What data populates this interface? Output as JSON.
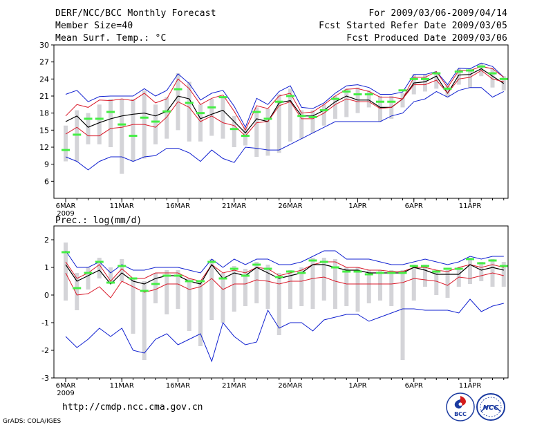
{
  "header": {
    "title": "DERF/NCC/BCC Monthly Forecast",
    "member_size": "Member Size=40",
    "variable": "Mean Surf. Temp.: °C",
    "period": "For 2009/03/06-2009/04/14",
    "started_refer": "Fcst Started Refer Date 2009/03/05",
    "produced": "Fcst Produced Date 2009/03/06"
  },
  "footer": {
    "url": "http://cmdp.ncc.cma.gov.cn",
    "grads": "GrADS: COLA/IGES",
    "logo_bcc_text": "BCC",
    "logo_ncc_text": "NCC"
  },
  "colors": {
    "ensemble_mean": "#000000",
    "percentile_band": "#d91a2a",
    "extremes": "#1020d0",
    "member_bar": "#d4d4d8",
    "observed_mark": "#44ee44"
  },
  "chart_data": [
    {
      "type": "line",
      "title": "Mean Surf. Temp.: °C",
      "x_tick_labels": [
        "6MAR",
        "11MAR",
        "16MAR",
        "21MAR",
        "26MAR",
        "1APR",
        "6APR",
        "11APR"
      ],
      "x_year_label": "2009",
      "x_tick_index": [
        0,
        5,
        10,
        15,
        20,
        26,
        31,
        36
      ],
      "n_days": 40,
      "ylim": [
        3,
        30
      ],
      "yticks": [
        6,
        9,
        12,
        15,
        18,
        21,
        24,
        27,
        30
      ],
      "series": [
        {
          "name": "max",
          "values": [
            21.3,
            22.0,
            20.0,
            20.9,
            21.0,
            21.0,
            21.0,
            22.3,
            21.0,
            22.0,
            24.9,
            23.2,
            20.3,
            21.5,
            22.0,
            19.2,
            15.5,
            20.6,
            19.5,
            21.8,
            22.8,
            19.0,
            18.8,
            19.8,
            21.5,
            22.8,
            23.0,
            22.5,
            21.3,
            21.3,
            21.7,
            24.8,
            24.8,
            25.3,
            23.0,
            25.9,
            25.8,
            26.8,
            26.2,
            24.3
          ]
        },
        {
          "name": "upper",
          "values": [
            17.5,
            19.5,
            19.0,
            20.3,
            20.2,
            20.5,
            20.2,
            21.5,
            19.8,
            20.5,
            24.0,
            22.3,
            19.5,
            20.6,
            21.2,
            18.3,
            15.0,
            19.3,
            18.8,
            21.0,
            21.5,
            18.0,
            18.2,
            19.5,
            21.0,
            22.2,
            22.3,
            21.8,
            20.8,
            20.8,
            20.5,
            24.3,
            24.3,
            25.3,
            22.5,
            25.5,
            25.5,
            26.2,
            25.8,
            24.3
          ]
        },
        {
          "name": "mean",
          "values": [
            16.5,
            17.5,
            15.5,
            16.3,
            17.0,
            17.5,
            17.8,
            18.0,
            17.5,
            18.3,
            21.0,
            20.5,
            17.0,
            17.8,
            18.5,
            16.5,
            14.5,
            17.0,
            16.5,
            19.8,
            20.2,
            17.5,
            17.5,
            18.5,
            20.0,
            21.0,
            20.3,
            20.3,
            19.0,
            19.0,
            20.5,
            23.3,
            23.5,
            24.5,
            21.5,
            24.7,
            24.8,
            25.8,
            24.5,
            23.2
          ]
        },
        {
          "name": "lower",
          "values": [
            14.3,
            15.5,
            14.0,
            14.0,
            15.3,
            15.5,
            16.0,
            16.0,
            15.5,
            17.3,
            20.0,
            19.0,
            16.5,
            17.5,
            16.3,
            15.8,
            14.0,
            16.3,
            16.5,
            19.3,
            20.0,
            17.0,
            17.0,
            18.0,
            19.5,
            20.5,
            20.0,
            20.0,
            18.8,
            19.0,
            20.5,
            23.0,
            23.0,
            23.8,
            21.5,
            24.0,
            24.3,
            25.5,
            24.0,
            23.5
          ]
        },
        {
          "name": "min",
          "values": [
            10.3,
            9.5,
            8.0,
            9.5,
            10.3,
            10.3,
            9.5,
            10.3,
            10.5,
            11.8,
            11.8,
            11.0,
            9.5,
            11.5,
            10.0,
            9.3,
            12.0,
            11.8,
            11.5,
            11.5,
            12.5,
            13.5,
            14.5,
            15.5,
            16.5,
            16.5,
            16.5,
            16.5,
            16.5,
            17.5,
            18.0,
            20.0,
            20.5,
            21.8,
            20.8,
            22.0,
            22.5,
            22.5,
            20.8,
            21.8
          ]
        }
      ],
      "member_range": {
        "low": [
          9.5,
          9.5,
          12.5,
          12.5,
          12.0,
          7.3,
          9.5,
          10.0,
          12.5,
          13.5,
          15.0,
          13.0,
          13.0,
          14.0,
          13.5,
          12.0,
          12.3,
          10.3,
          10.5,
          11.0,
          13.0,
          13.5,
          14.5,
          15.8,
          17.0,
          17.3,
          18.0,
          19.0,
          16.5,
          17.0,
          19.0,
          21.3,
          21.8,
          22.3,
          20.8,
          23.0,
          22.5,
          24.5,
          22.5,
          22.0
        ],
        "high": [
          15.8,
          18.5,
          18.0,
          19.5,
          20.5,
          20.5,
          20.5,
          22.0,
          19.5,
          20.8,
          25.0,
          23.5,
          19.5,
          20.5,
          20.8,
          17.5,
          15.5,
          19.0,
          18.8,
          21.3,
          22.3,
          18.5,
          18.5,
          19.5,
          21.0,
          22.3,
          22.5,
          22.0,
          21.0,
          21.0,
          21.5,
          24.8,
          24.8,
          25.0,
          23.0,
          25.8,
          25.8,
          26.8,
          26.0,
          24.5
        ]
      },
      "observed": [
        11.5,
        14.2,
        17.0,
        17.0,
        18.2,
        16.0,
        14.0,
        17.2,
        16.5,
        18.3,
        22.2,
        19.8,
        18.0,
        19.0,
        20.8,
        15.2,
        14.0,
        18.2,
        17.0,
        20.0,
        21.0,
        17.5,
        17.3,
        18.5,
        20.5,
        21.8,
        21.3,
        21.3,
        20.0,
        20.0,
        22.0,
        24.0,
        24.0,
        25.0,
        22.3,
        25.3,
        25.5,
        26.2,
        25.0,
        24.0
      ]
    },
    {
      "type": "line",
      "title": "Prec.: log(mm/d)",
      "x_tick_labels": [
        "6MAR",
        "11MAR",
        "16MAR",
        "21MAR",
        "26MAR",
        "1APR",
        "6APR",
        "11APR"
      ],
      "x_year_label": "2009",
      "x_tick_index": [
        0,
        5,
        10,
        15,
        20,
        26,
        31,
        36
      ],
      "n_days": 40,
      "ylim": [
        -3,
        2.5
      ],
      "yticks": [
        -3,
        -2,
        -1,
        0,
        1,
        2
      ],
      "series": [
        {
          "name": "max",
          "values": [
            1.6,
            1.0,
            1.0,
            1.2,
            0.8,
            1.1,
            0.9,
            0.9,
            1.0,
            1.0,
            1.0,
            0.9,
            0.8,
            1.3,
            1.0,
            1.3,
            1.1,
            1.3,
            1.3,
            1.1,
            1.1,
            1.2,
            1.4,
            1.6,
            1.6,
            1.3,
            1.3,
            1.3,
            1.2,
            1.1,
            1.1,
            1.2,
            1.3,
            1.2,
            1.1,
            1.2,
            1.4,
            1.3,
            1.4,
            1.4
          ]
        },
        {
          "name": "upper",
          "values": [
            1.2,
            0.6,
            0.8,
            1.1,
            0.5,
            0.95,
            0.6,
            0.6,
            0.8,
            0.8,
            0.8,
            0.6,
            0.5,
            1.1,
            0.8,
            0.9,
            0.8,
            1.0,
            0.95,
            0.7,
            0.8,
            0.9,
            1.1,
            1.2,
            1.2,
            1.0,
            1.0,
            0.9,
            0.9,
            0.85,
            0.85,
            1.0,
            1.0,
            0.9,
            0.85,
            1.0,
            1.1,
            1.0,
            1.1,
            1.0
          ]
        },
        {
          "name": "mean",
          "values": [
            1.1,
            0.5,
            0.7,
            0.9,
            0.4,
            0.8,
            0.5,
            0.4,
            0.6,
            0.7,
            0.7,
            0.5,
            0.4,
            1.1,
            0.6,
            0.8,
            0.7,
            1.0,
            0.8,
            0.6,
            0.7,
            0.8,
            1.1,
            1.1,
            1.0,
            0.9,
            0.9,
            0.8,
            0.8,
            0.8,
            0.8,
            1.0,
            0.9,
            0.75,
            0.75,
            0.75,
            1.1,
            0.9,
            1.0,
            0.9
          ]
        },
        {
          "name": "lower",
          "values": [
            0.8,
            0.0,
            0.05,
            0.3,
            -0.1,
            0.5,
            0.3,
            0.1,
            0.2,
            0.4,
            0.4,
            0.2,
            0.3,
            0.6,
            0.2,
            0.4,
            0.4,
            0.55,
            0.5,
            0.4,
            0.5,
            0.5,
            0.6,
            0.65,
            0.5,
            0.4,
            0.4,
            0.4,
            0.4,
            0.4,
            0.45,
            0.6,
            0.55,
            0.5,
            0.35,
            0.65,
            0.6,
            0.7,
            0.8,
            0.7
          ]
        },
        {
          "name": "min",
          "values": [
            -1.5,
            -1.9,
            -1.6,
            -1.2,
            -1.5,
            -1.2,
            -2.0,
            -2.1,
            -1.6,
            -1.4,
            -1.8,
            -1.6,
            -1.4,
            -2.4,
            -1.0,
            -1.5,
            -1.8,
            -1.7,
            -0.55,
            -1.2,
            -1.0,
            -1.0,
            -1.3,
            -0.9,
            -0.8,
            -0.7,
            -0.7,
            -0.95,
            -0.8,
            -0.65,
            -0.5,
            -0.5,
            -0.55,
            -0.55,
            -0.55,
            -0.65,
            -0.15,
            -0.6,
            -0.4,
            -0.3
          ]
        }
      ],
      "member_range": {
        "low": [
          -0.2,
          -0.55,
          0.2,
          0.6,
          0.4,
          0.5,
          -1.4,
          -2.35,
          -0.3,
          -0.7,
          -0.5,
          -1.3,
          -1.85,
          -0.9,
          -1.0,
          -0.6,
          -0.4,
          -0.3,
          -0.5,
          -1.45,
          -0.5,
          -0.4,
          -0.5,
          -0.2,
          -0.5,
          -0.4,
          -0.6,
          -0.3,
          -0.2,
          -0.4,
          -2.35,
          -0.2,
          0.3,
          0.0,
          -0.1,
          0.3,
          0.4,
          0.5,
          0.3,
          0.3
        ],
        "high": [
          1.9,
          0.8,
          1.0,
          1.35,
          1.0,
          1.3,
          0.6,
          0.5,
          0.8,
          0.9,
          0.9,
          0.6,
          0.5,
          1.3,
          0.8,
          1.05,
          0.95,
          1.2,
          1.1,
          0.8,
          0.9,
          1.0,
          1.35,
          1.35,
          1.3,
          1.0,
          1.0,
          0.9,
          0.9,
          0.9,
          0.9,
          1.1,
          1.1,
          0.9,
          0.9,
          1.0,
          1.35,
          1.2,
          1.3,
          1.2
        ]
      },
      "observed": [
        1.55,
        0.25,
        0.8,
        1.2,
        0.45,
        1.05,
        0.6,
        0.15,
        0.4,
        0.7,
        0.7,
        0.5,
        0.5,
        1.2,
        0.6,
        0.95,
        0.7,
        1.1,
        0.95,
        0.65,
        0.85,
        0.8,
        1.25,
        1.2,
        1.0,
        0.85,
        0.85,
        0.75,
        0.8,
        0.8,
        0.8,
        1.05,
        1.05,
        0.85,
        0.95,
        0.95,
        1.3,
        1.15,
        1.25,
        1.05
      ]
    }
  ]
}
